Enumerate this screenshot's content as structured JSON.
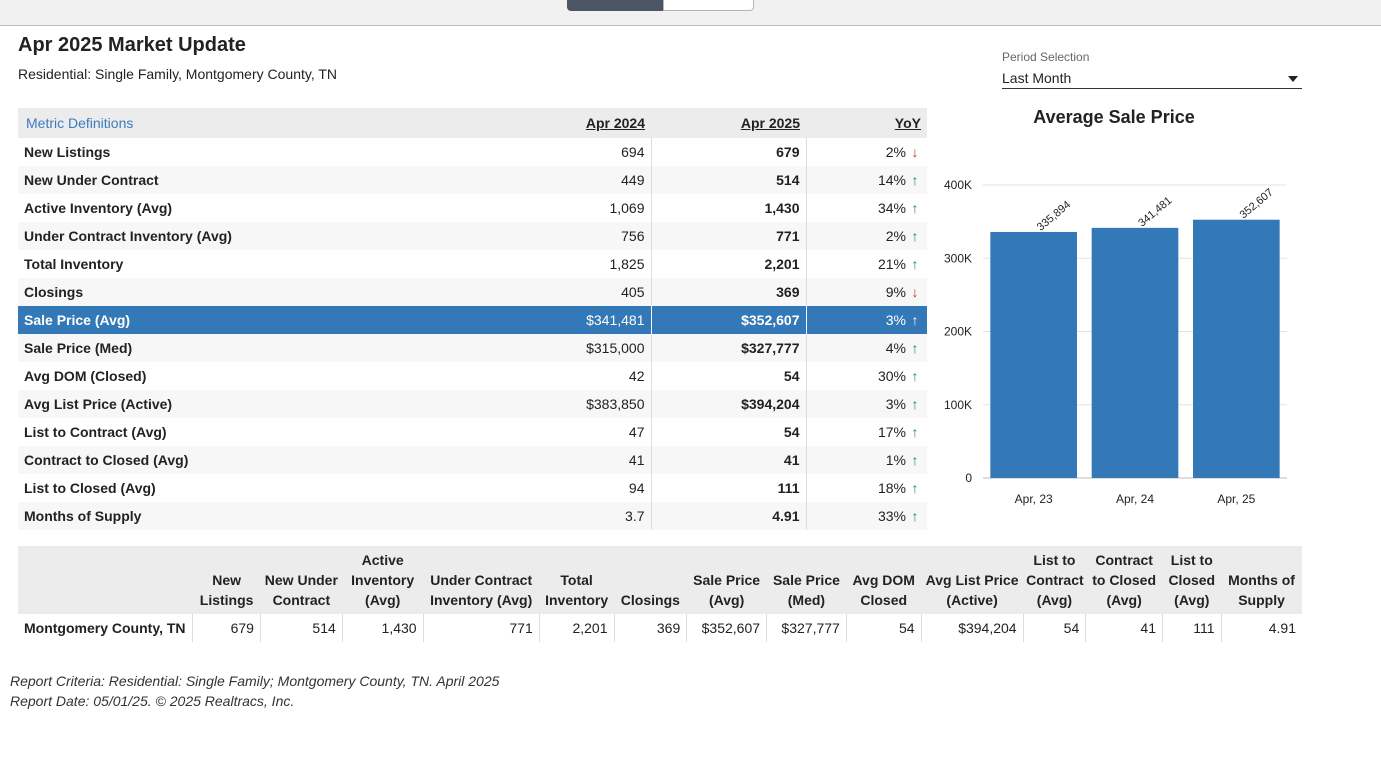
{
  "page": {
    "title": "Apr 2025 Market Update",
    "subtitle": "Residential: Single Family, Montgomery County, TN"
  },
  "period": {
    "label": "Period Selection",
    "value": "Last Month"
  },
  "metrics_table": {
    "definitions_link": "Metric Definitions",
    "col_prev": "Apr 2024",
    "col_curr": "Apr 2025",
    "col_yoy": "YoY",
    "rows": [
      {
        "name": "New Listings",
        "prev": "694",
        "curr": "679",
        "yoy": "2%",
        "dir": "down"
      },
      {
        "name": "New Under Contract",
        "prev": "449",
        "curr": "514",
        "yoy": "14%",
        "dir": "up"
      },
      {
        "name": "Active Inventory (Avg)",
        "prev": "1,069",
        "curr": "1,430",
        "yoy": "34%",
        "dir": "up"
      },
      {
        "name": "Under Contract Inventory (Avg)",
        "prev": "756",
        "curr": "771",
        "yoy": "2%",
        "dir": "up"
      },
      {
        "name": "Total Inventory",
        "prev": "1,825",
        "curr": "2,201",
        "yoy": "21%",
        "dir": "up"
      },
      {
        "name": "Closings",
        "prev": "405",
        "curr": "369",
        "yoy": "9%",
        "dir": "down"
      },
      {
        "name": "Sale Price (Avg)",
        "prev": "$341,481",
        "curr": "$352,607",
        "yoy": "3%",
        "dir": "up",
        "selected": true
      },
      {
        "name": "Sale Price (Med)",
        "prev": "$315,000",
        "curr": "$327,777",
        "yoy": "4%",
        "dir": "up"
      },
      {
        "name": "Avg DOM (Closed)",
        "prev": "42",
        "curr": "54",
        "yoy": "30%",
        "dir": "up"
      },
      {
        "name": "Avg List Price (Active)",
        "prev": "$383,850",
        "curr": "$394,204",
        "yoy": "3%",
        "dir": "up"
      },
      {
        "name": "List to Contract (Avg)",
        "prev": "47",
        "curr": "54",
        "yoy": "17%",
        "dir": "up"
      },
      {
        "name": "Contract to Closed (Avg)",
        "prev": "41",
        "curr": "41",
        "yoy": "1%",
        "dir": "up"
      },
      {
        "name": "List to Closed (Avg)",
        "prev": "94",
        "curr": "111",
        "yoy": "18%",
        "dir": "up"
      },
      {
        "name": "Months of Supply",
        "prev": "3.7",
        "curr": "4.91",
        "yoy": "33%",
        "dir": "up"
      }
    ]
  },
  "colors": {
    "accent": "#3479b7",
    "up": "#1f8a4c",
    "down": "#c0392b",
    "link": "#3b7bbf"
  },
  "icons": {
    "up": "arrow-up-icon",
    "down": "arrow-down-icon",
    "dropdown": "chevron-down-icon"
  },
  "chart_data": {
    "type": "bar",
    "title": "Average Sale Price",
    "categories": [
      "Apr, 23",
      "Apr, 24",
      "Apr, 25"
    ],
    "values": [
      335894,
      341481,
      352607
    ],
    "data_labels": [
      "335,894",
      "341,481",
      "352,607"
    ],
    "ylim": [
      0,
      400000
    ],
    "yticks": [
      0,
      100000,
      200000,
      300000,
      400000
    ],
    "ytick_labels": [
      "0",
      "100K",
      "200K",
      "300K",
      "400K"
    ],
    "grid": true,
    "bar_color": "#3479b7"
  },
  "summary_table": {
    "headers": [
      "",
      "New Listings",
      "New Under Contract",
      "Active Inventory (Avg)",
      "Under Contract Inventory (Avg)",
      "Total Inventory",
      "Closings",
      "Sale Price (Avg)",
      "Sale Price (Med)",
      "Avg DOM Closed",
      "Avg List Price (Active)",
      "List to Contract (Avg)",
      "Contract to Closed (Avg)",
      "List to Closed (Avg)",
      "Months of Supply"
    ],
    "row": [
      "Montgomery County, TN",
      "679",
      "514",
      "1,430",
      "771",
      "2,201",
      "369",
      "$352,607",
      "$327,777",
      "54",
      "$394,204",
      "54",
      "41",
      "111",
      "4.91"
    ]
  },
  "footer": {
    "criteria": "Report Criteria: Residential: Single Family; Montgomery County, TN. April 2025",
    "date": "Report Date: 05/01/25. © 2025 Realtracs, Inc."
  }
}
